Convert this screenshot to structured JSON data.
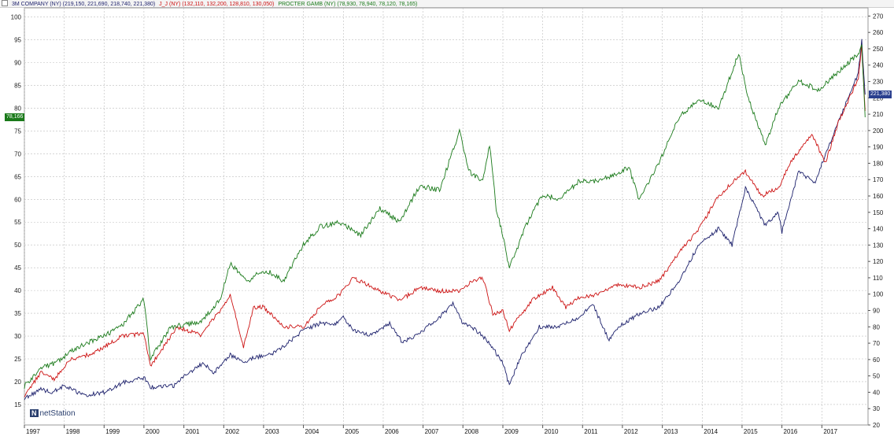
{
  "legend": {
    "series": [
      {
        "label": "3M COMPANY (NY) (219,150, 221,690, 218,740, 221,380)",
        "color": "#1b1f6b"
      },
      {
        "label": "J_J (NY) (132,110, 132,200, 128,810, 130,050)",
        "color": "#cc1111"
      },
      {
        "label": "PROCTER GAMB (NY) (78,930, 78,940, 78,120, 78,165)",
        "color": "#1a7a1a"
      }
    ]
  },
  "left_badge": {
    "text": "78,166",
    "color": "#1a7a1a"
  },
  "right_badge": {
    "text": "221,380",
    "color": "#2a3f8e"
  },
  "logo_text": "netStation",
  "logo_mark": "N",
  "chart_data": {
    "type": "line",
    "x_axis": {
      "type": "date",
      "range": [
        "1997-01-01",
        "2018-02-28"
      ],
      "tick_labels": [
        "1997",
        "1998",
        "1999",
        "2000",
        "2001",
        "2002",
        "2003",
        "2004",
        "2005",
        "2006",
        "2007",
        "2008",
        "2009",
        "2010",
        "2011",
        "2012",
        "2013",
        "2014",
        "2015",
        "2016",
        "2017"
      ]
    },
    "y_left": {
      "range": [
        10.5,
        102
      ],
      "ticks": [
        15,
        20,
        25,
        30,
        35,
        40,
        45,
        50,
        55,
        60,
        65,
        70,
        75,
        80,
        85,
        90,
        95,
        100
      ],
      "series": [
        "PROCTER GAMB (NY)"
      ]
    },
    "y_right": {
      "range": [
        20,
        275
      ],
      "ticks": [
        20,
        30,
        40,
        50,
        60,
        70,
        80,
        90,
        100,
        110,
        120,
        130,
        140,
        150,
        160,
        170,
        180,
        190,
        200,
        210,
        220,
        230,
        240,
        250,
        260,
        270
      ],
      "series": [
        "3M COMPANY (NY)",
        "J_J (NY)"
      ]
    },
    "grid": true,
    "series": [
      {
        "name": "3M COMPANY (NY)",
        "axis": "right",
        "color": "#1b1f6b",
        "points": [
          [
            "1997-01",
            36
          ],
          [
            "1997-06",
            42
          ],
          [
            "1997-09",
            40
          ],
          [
            "1998-01",
            44
          ],
          [
            "1998-07",
            38
          ],
          [
            "1999-01",
            40
          ],
          [
            "1999-07",
            46
          ],
          [
            "2000-01",
            49
          ],
          [
            "2000-03",
            43
          ],
          [
            "2000-10",
            44
          ],
          [
            "2001-01",
            50
          ],
          [
            "2001-07",
            58
          ],
          [
            "2001-10",
            52
          ],
          [
            "2002-03",
            63
          ],
          [
            "2002-07",
            58
          ],
          [
            "2002-10",
            61
          ],
          [
            "2003-03",
            63
          ],
          [
            "2003-07",
            68
          ],
          [
            "2004-01",
            78
          ],
          [
            "2004-06",
            82
          ],
          [
            "2004-11",
            82
          ],
          [
            "2005-01",
            86
          ],
          [
            "2005-04",
            78
          ],
          [
            "2005-09",
            75
          ],
          [
            "2006-01",
            80
          ],
          [
            "2006-03",
            82
          ],
          [
            "2006-07",
            70
          ],
          [
            "2007-01",
            78
          ],
          [
            "2007-06",
            86
          ],
          [
            "2007-10",
            94
          ],
          [
            "2008-01",
            82
          ],
          [
            "2008-05",
            78
          ],
          [
            "2008-09",
            70
          ],
          [
            "2009-01",
            58
          ],
          [
            "2009-03",
            44
          ],
          [
            "2009-06",
            60
          ],
          [
            "2009-12",
            80
          ],
          [
            "2010-06",
            80
          ],
          [
            "2010-12",
            86
          ],
          [
            "2011-04",
            94
          ],
          [
            "2011-09",
            72
          ],
          [
            "2011-12",
            80
          ],
          [
            "2012-06",
            88
          ],
          [
            "2012-12",
            92
          ],
          [
            "2013-06",
            108
          ],
          [
            "2013-12",
            130
          ],
          [
            "2014-06",
            140
          ],
          [
            "2014-10",
            130
          ],
          [
            "2015-02",
            165
          ],
          [
            "2015-08",
            142
          ],
          [
            "2015-12",
            150
          ],
          [
            "2016-01",
            138
          ],
          [
            "2016-06",
            175
          ],
          [
            "2016-11",
            168
          ],
          [
            "2017-01",
            180
          ],
          [
            "2017-06",
            205
          ],
          [
            "2017-12",
            235
          ],
          [
            "2018-01",
            255
          ],
          [
            "2018-02",
            222
          ]
        ]
      },
      {
        "name": "J_J (NY)",
        "axis": "right",
        "color": "#cc1111",
        "points": [
          [
            "1997-01",
            38
          ],
          [
            "1997-06",
            52
          ],
          [
            "1997-10",
            48
          ],
          [
            "1998-03",
            60
          ],
          [
            "1998-10",
            64
          ],
          [
            "1999-06",
            74
          ],
          [
            "2000-01",
            76
          ],
          [
            "2000-03",
            56
          ],
          [
            "2000-11",
            80
          ],
          [
            "2001-06",
            75
          ],
          [
            "2001-12",
            90
          ],
          [
            "2002-03",
            100
          ],
          [
            "2002-07",
            68
          ],
          [
            "2002-10",
            92
          ],
          [
            "2003-01",
            92
          ],
          [
            "2003-07",
            80
          ],
          [
            "2004-01",
            80
          ],
          [
            "2004-06",
            92
          ],
          [
            "2004-12",
            100
          ],
          [
            "2005-04",
            110
          ],
          [
            "2005-12",
            102
          ],
          [
            "2006-06",
            96
          ],
          [
            "2006-12,",
            104
          ],
          [
            "2007-06",
            102
          ],
          [
            "2007-12",
            102
          ],
          [
            "2008-04",
            108
          ],
          [
            "2008-07",
            110
          ],
          [
            "2008-10",
            88
          ],
          [
            "2009-01",
            90
          ],
          [
            "2009-03",
            78
          ],
          [
            "2009-10",
            97
          ],
          [
            "2010-04",
            104
          ],
          [
            "2010-08",
            92
          ],
          [
            "2010-12",
            98
          ],
          [
            "2011-06",
            100
          ],
          [
            "2011-12",
            106
          ],
          [
            "2012-06",
            104
          ],
          [
            "2012-12",
            108
          ],
          [
            "2013-06",
            125
          ],
          [
            "2013-12",
            140
          ],
          [
            "2014-06",
            160
          ],
          [
            "2014-10",
            168
          ],
          [
            "2015-02",
            175
          ],
          [
            "2015-07",
            160
          ],
          [
            "2015-12",
            165
          ],
          [
            "2016-04",
            182
          ],
          [
            "2016-10",
            198
          ],
          [
            "2017-02",
            180
          ],
          [
            "2017-06",
            205
          ],
          [
            "2017-12",
            232
          ],
          [
            "2018-01",
            252
          ],
          [
            "2018-02",
            212
          ]
        ]
      },
      {
        "name": "PROCTER GAMB (NY)",
        "axis": "left",
        "color": "#1a7a1a",
        "points": [
          [
            "1997-01",
            19
          ],
          [
            "1997-06",
            23
          ],
          [
            "1997-10",
            24
          ],
          [
            "1998-06",
            28
          ],
          [
            "1999-01",
            30
          ],
          [
            "1999-06",
            32
          ],
          [
            "2000-01",
            38
          ],
          [
            "2000-03",
            25
          ],
          [
            "2000-09",
            32
          ],
          [
            "2001-06",
            33
          ],
          [
            "2001-12",
            38
          ],
          [
            "2002-03",
            46
          ],
          [
            "2002-08",
            42
          ],
          [
            "2002-12",
            44
          ],
          [
            "2003-03",
            44
          ],
          [
            "2003-07",
            42
          ],
          [
            "2004-01",
            50
          ],
          [
            "2004-06",
            54
          ],
          [
            "2004-12",
            55
          ],
          [
            "2005-06",
            52
          ],
          [
            "2005-12",
            58
          ],
          [
            "2006-06",
            55
          ],
          [
            "2006-12",
            63
          ],
          [
            "2007-06",
            62
          ],
          [
            "2007-12",
            75
          ],
          [
            "2008-03",
            66
          ],
          [
            "2008-07",
            64
          ],
          [
            "2008-09",
            72
          ],
          [
            "2008-11",
            58
          ],
          [
            "2009-01",
            52
          ],
          [
            "2009-03",
            45
          ],
          [
            "2009-09",
            56
          ],
          [
            "2010-01",
            61
          ],
          [
            "2010-06",
            60
          ],
          [
            "2010-12",
            64
          ],
          [
            "2011-06",
            64
          ],
          [
            "2011-12",
            66
          ],
          [
            "2012-03",
            67
          ],
          [
            "2012-06",
            60
          ],
          [
            "2012-12",
            68
          ],
          [
            "2013-06",
            78
          ],
          [
            "2013-12",
            82
          ],
          [
            "2014-06",
            80
          ],
          [
            "2014-12",
            92
          ],
          [
            "2015-03",
            82
          ],
          [
            "2015-08",
            72
          ],
          [
            "2015-12",
            80
          ],
          [
            "2016-06",
            86
          ],
          [
            "2016-12",
            84
          ],
          [
            "2017-06",
            88
          ],
          [
            "2017-12",
            92
          ],
          [
            "2018-01",
            94
          ],
          [
            "2018-02",
            78
          ]
        ]
      }
    ]
  }
}
